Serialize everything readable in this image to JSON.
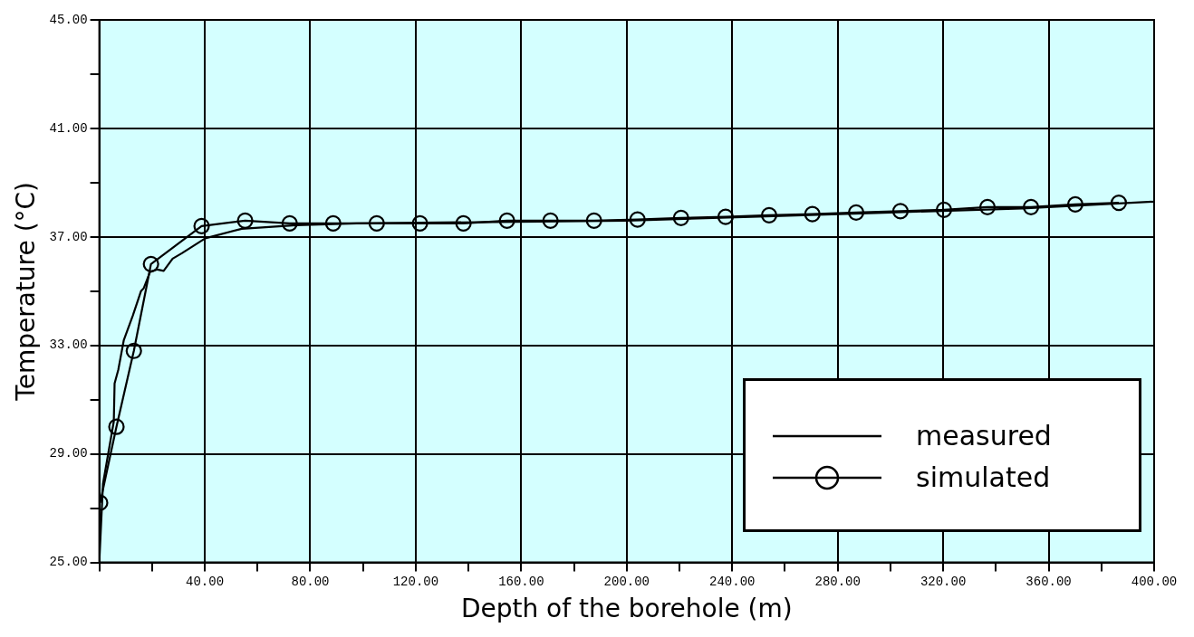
{
  "chart_data": {
    "type": "line",
    "xlabel": "Depth of the borehole (m)",
    "ylabel": "Temperature (°C)",
    "xlim": [
      0,
      400
    ],
    "ylim": [
      25,
      45
    ],
    "xticks": [
      {
        "value": 0,
        "label": null
      },
      {
        "value": 20,
        "label": null
      },
      {
        "value": 40,
        "label": "40.00"
      },
      {
        "value": 60,
        "label": null
      },
      {
        "value": 80,
        "label": "80.00"
      },
      {
        "value": 100,
        "label": null
      },
      {
        "value": 120,
        "label": "120.00"
      },
      {
        "value": 140,
        "label": null
      },
      {
        "value": 160,
        "label": "160.00"
      },
      {
        "value": 180,
        "label": null
      },
      {
        "value": 200,
        "label": "200.00"
      },
      {
        "value": 220,
        "label": null
      },
      {
        "value": 240,
        "label": "240.00"
      },
      {
        "value": 260,
        "label": null
      },
      {
        "value": 280,
        "label": "280.00"
      },
      {
        "value": 300,
        "label": null
      },
      {
        "value": 320,
        "label": "320.00"
      },
      {
        "value": 340,
        "label": null
      },
      {
        "value": 360,
        "label": "360.00"
      },
      {
        "value": 380,
        "label": null
      },
      {
        "value": 400,
        "label": "400.00"
      }
    ],
    "yticks": [
      {
        "value": 25,
        "label": "25.00"
      },
      {
        "value": 27,
        "label": null
      },
      {
        "value": 29,
        "label": "29.00"
      },
      {
        "value": 31,
        "label": null
      },
      {
        "value": 33,
        "label": "33.00"
      },
      {
        "value": 35,
        "label": null
      },
      {
        "value": 37,
        "label": "37.00"
      },
      {
        "value": 39,
        "label": null
      },
      {
        "value": 41,
        "label": "41.00"
      },
      {
        "value": 43,
        "label": null
      },
      {
        "value": 45,
        "label": "45.00"
      }
    ],
    "grid": true,
    "legend": "bottom right",
    "series": [
      {
        "name": "measured",
        "color": "#000000",
        "marker": "none",
        "x": [
          0,
          1.4,
          5.5,
          5.8,
          7.2,
          9.3,
          12.7,
          15.8,
          16.8,
          19.2,
          22,
          24.4,
          27.8,
          31.3,
          40.2,
          54,
          74.6,
          97.6,
          150,
          200,
          250,
          300,
          350,
          400
        ],
        "values": [
          25.0,
          27.9,
          30.2,
          31.6,
          32.1,
          33.2,
          34.1,
          35.0,
          35.1,
          35.7,
          35.8,
          35.75,
          36.2,
          36.4,
          36.95,
          37.3,
          37.43,
          37.5,
          37.55,
          37.6,
          37.75,
          37.9,
          38.05,
          38.3
        ]
      },
      {
        "name": "simulated",
        "color": "#000000",
        "marker": "circle",
        "x": [
          0.3,
          6.5,
          13.1,
          19.6,
          38.8,
          55.3,
          72.2,
          88.7,
          105.2,
          121.6,
          138.1,
          154.6,
          171.1,
          187.6,
          204.1,
          220.6,
          237.5,
          254,
          270.4,
          287,
          303.8,
          320.3,
          336.8,
          353.3,
          370.1,
          386.6
        ],
        "values": [
          27.2,
          30.0,
          32.8,
          36.0,
          37.4,
          37.6,
          37.5,
          37.5,
          37.5,
          37.5,
          37.5,
          37.6,
          37.6,
          37.6,
          37.64,
          37.7,
          37.74,
          37.8,
          37.84,
          37.9,
          37.95,
          38.0,
          38.1,
          38.1,
          38.2,
          38.26
        ]
      }
    ]
  }
}
